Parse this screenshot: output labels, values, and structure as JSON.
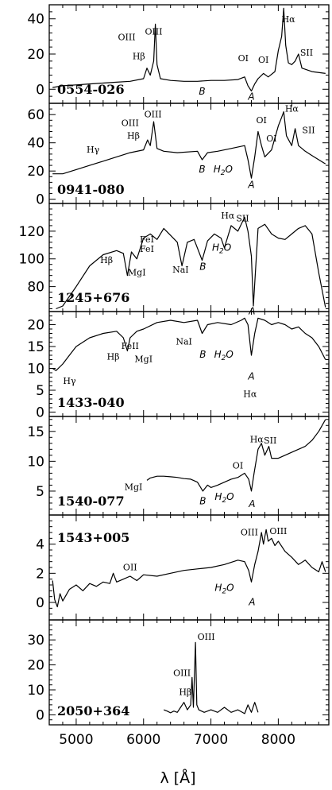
{
  "chart_data": {
    "type": "line",
    "xlabel": "λ [Å]",
    "xlim": [
      4600,
      8750
    ],
    "x_ticks": [
      5000,
      6000,
      7000,
      8000
    ],
    "x_tick_labels": [
      "5000",
      "6000",
      "7000",
      "8000"
    ],
    "panels": [
      {
        "name": "0554-026",
        "ylim": [
          -8,
          48
        ],
        "y_ticks": [
          0,
          20,
          40
        ],
        "y_tick_labels": [
          "0",
          "20",
          "40"
        ],
        "series": [
          {
            "x": [
              4650,
              4800,
              5000,
              5200,
              5400,
              5600,
              5800,
              6000,
              6050,
              6100,
              6150,
              6175,
              6200,
              6250,
              6400,
              6600,
              6800,
              7000,
              7200,
              7400,
              7500,
              7550,
              7600,
              7650,
              7700,
              7780,
              7850,
              7950,
              8000,
              8050,
              8080,
              8110,
              8150,
              8200,
              8250,
              8300,
              8350,
              8500,
              8700
            ],
            "y": [
              1,
              2,
              2.5,
              3,
              3.5,
              4,
              4.5,
              6,
              12,
              8,
              16,
              37,
              14,
              6,
              5,
              4.5,
              4.5,
              5,
              5,
              5.5,
              7,
              2,
              -1,
              3,
              6,
              9,
              7,
              10,
              22,
              30,
              46,
              25,
              15,
              14,
              16,
              20,
              12,
              10,
              9
            ]
          }
        ],
        "line_labels": [
          {
            "text": "OIII",
            "x": 5750,
            "y": 28
          },
          {
            "text": "Hβ",
            "x": 5930,
            "y": 17
          },
          {
            "text": "OIII",
            "x": 6150,
            "y": 31
          },
          {
            "text": "OI",
            "x": 7480,
            "y": 16
          },
          {
            "text": "OI",
            "x": 7780,
            "y": 15
          },
          {
            "text": "Hα",
            "x": 8150,
            "y": 38
          },
          {
            "text": "SII",
            "x": 8420,
            "y": 19
          }
        ],
        "band_labels": [
          {
            "text": "B",
            "x": 6870,
            "y": -3
          },
          {
            "text": "A",
            "x": 7600,
            "y": -6
          }
        ]
      },
      {
        "name": "0941-080",
        "ylim": [
          -3,
          68
        ],
        "y_ticks": [
          0,
          20,
          40,
          60
        ],
        "y_tick_labels": [
          "0",
          "20",
          "40",
          "60"
        ],
        "series": [
          {
            "x": [
              4650,
              4800,
              5000,
              5200,
              5400,
              5600,
              5800,
              6000,
              6060,
              6100,
              6150,
              6200,
              6300,
              6500,
              6800,
              6870,
              6950,
              7100,
              7300,
              7500,
              7550,
              7600,
              7650,
              7700,
              7750,
              7800,
              7900,
              8000,
              8050,
              8080,
              8120,
              8200,
              8250,
              8300,
              8400,
              8500,
              8600,
              8700
            ],
            "y": [
              18,
              18,
              21,
              24,
              27,
              30,
              33,
              35,
              42,
              38,
              55,
              36,
              34,
              33,
              34,
              28,
              33,
              34,
              36,
              38,
              28,
              15,
              30,
              48,
              38,
              30,
              35,
              52,
              58,
              62,
              45,
              38,
              50,
              38,
              34,
              31,
              28,
              25
            ]
          }
        ],
        "line_labels": [
          {
            "text": "Hγ",
            "x": 5250,
            "y": 33
          },
          {
            "text": "OIII",
            "x": 5800,
            "y": 52
          },
          {
            "text": "Hβ",
            "x": 5850,
            "y": 43
          },
          {
            "text": "OIII",
            "x": 6140,
            "y": 58
          },
          {
            "text": "OI",
            "x": 7750,
            "y": 54
          },
          {
            "text": "OI",
            "x": 7900,
            "y": 41
          },
          {
            "text": "Hα",
            "x": 8200,
            "y": 62
          },
          {
            "text": "SII",
            "x": 8450,
            "y": 47
          }
        ],
        "band_labels": [
          {
            "text": "B",
            "x": 6870,
            "y": 19
          },
          {
            "text": "H2O",
            "x": 7180,
            "y": 19
          },
          {
            "text": "A",
            "x": 7600,
            "y": 8
          }
        ]
      },
      {
        "name": "1245+676",
        "ylim": [
          62,
          140
        ],
        "y_ticks": [
          80,
          100,
          120
        ],
        "y_tick_labels": [
          "80",
          "100",
          "120"
        ],
        "series": [
          {
            "x": [
              4700,
              4800,
              5000,
              5200,
              5400,
              5600,
              5700,
              5760,
              5820,
              5900,
              6000,
              6100,
              6200,
              6300,
              6400,
              6500,
              6570,
              6650,
              6750,
              6870,
              6950,
              7050,
              7150,
              7200,
              7300,
              7400,
              7500,
              7550,
              7600,
              7630,
              7700,
              7800,
              7900,
              8000,
              8100,
              8200,
              8300,
              8400,
              8500,
              8600,
              8700
            ],
            "y": [
              64,
              66,
              80,
              95,
              103,
              106,
              104,
              88,
              105,
              100,
              115,
              118,
              114,
              122,
              117,
              112,
              95,
              112,
              114,
              99,
              113,
              118,
              115,
              108,
              124,
              120,
              130,
              120,
              102,
              66,
              122,
              125,
              118,
              115,
              114,
              118,
              122,
              124,
              118,
              90,
              65
            ]
          }
        ],
        "line_labels": [
          {
            "text": "Hβ",
            "x": 5450,
            "y": 97
          },
          {
            "text": "FeI",
            "x": 6050,
            "y": 112
          },
          {
            "text": "FeI",
            "x": 6050,
            "y": 105
          },
          {
            "text": "MgI",
            "x": 5900,
            "y": 88
          },
          {
            "text": "NaI",
            "x": 6550,
            "y": 90
          },
          {
            "text": "Hα",
            "x": 7250,
            "y": 129
          },
          {
            "text": "SII",
            "x": 7470,
            "y": 127
          }
        ],
        "band_labels": [
          {
            "text": "B",
            "x": 6880,
            "y": 92
          },
          {
            "text": "H2O",
            "x": 7160,
            "y": 106
          },
          {
            "text": "A",
            "x": 7610,
            "y": 60
          }
        ]
      },
      {
        "name": "1433-040",
        "ylim": [
          -1,
          23
        ],
        "y_ticks": [
          0,
          5,
          10,
          15,
          20
        ],
        "y_tick_labels": [
          "0",
          "5",
          "10",
          "15",
          "20"
        ],
        "series": [
          {
            "x": [
              4650,
              4700,
              4800,
              4900,
              5000,
              5200,
              5400,
              5600,
              5700,
              5760,
              5800,
              5900,
              6000,
              6200,
              6400,
              6600,
              6800,
              6870,
              6950,
              7100,
              7300,
              7450,
              7500,
              7550,
              7600,
              7650,
              7700,
              7800,
              7900,
              8000,
              8100,
              8200,
              8300,
              8400,
              8500,
              8600,
              8700
            ],
            "y": [
              10,
              9.5,
              11,
              13,
              15,
              17,
              18,
              18.5,
              17,
              14,
              17,
              18.5,
              19,
              20.5,
              21,
              20.5,
              21,
              18,
              20,
              20.5,
              20,
              21,
              21.5,
              20,
              13,
              18,
              21.5,
              21,
              20,
              20.5,
              20,
              19,
              19.5,
              18,
              17,
              15,
              12
            ]
          }
        ],
        "line_labels": [
          {
            "text": "Hγ",
            "x": 4900,
            "y": 6.5
          },
          {
            "text": "Hβ",
            "x": 5550,
            "y": 12
          },
          {
            "text": "FeII",
            "x": 5800,
            "y": 14.5
          },
          {
            "text": "MgI",
            "x": 6000,
            "y": 11.5
          },
          {
            "text": "NaI",
            "x": 6600,
            "y": 15.5
          },
          {
            "text": "Hα",
            "x": 7580,
            "y": 3.5
          }
        ],
        "band_labels": [
          {
            "text": "B",
            "x": 6880,
            "y": 12.5
          },
          {
            "text": "H2O",
            "x": 7190,
            "y": 12.5
          },
          {
            "text": "A",
            "x": 7600,
            "y": 7.5
          }
        ]
      },
      {
        "name": "1540-077",
        "ylim": [
          1,
          17.5
        ],
        "y_ticks": [
          5,
          10,
          15
        ],
        "y_tick_labels": [
          "5",
          "10",
          "15"
        ],
        "series": [
          {
            "x": [
              6050,
              6100,
              6200,
              6300,
              6400,
              6500,
              6600,
              6700,
              6800,
              6880,
              6950,
              7000,
              7100,
              7200,
              7300,
              7400,
              7500,
              7560,
              7600,
              7640,
              7700,
              7750,
              7800,
              7860,
              7900,
              8000,
              8100,
              8200,
              8300,
              8400,
              8500,
              8600,
              8700
            ],
            "y": [
              6.8,
              7.2,
              7.5,
              7.5,
              7.4,
              7.3,
              7.1,
              7,
              6.5,
              5,
              6,
              5.6,
              6,
              6.5,
              7,
              7.3,
              8,
              7,
              5,
              8,
              12,
              13,
              11,
              12.5,
              10.5,
              10.5,
              11,
              11.5,
              12,
              12.5,
              13.5,
              15,
              17
            ]
          }
        ],
        "line_labels": [
          {
            "text": "MgI",
            "x": 5850,
            "y": 5.2
          },
          {
            "text": "OI",
            "x": 7400,
            "y": 8.8
          },
          {
            "text": "Hα",
            "x": 7680,
            "y": 13.2
          },
          {
            "text": "SII",
            "x": 7880,
            "y": 13
          }
        ],
        "band_labels": [
          {
            "text": "B",
            "x": 6880,
            "y": 2.8
          },
          {
            "text": "H2O",
            "x": 7200,
            "y": 3.5
          },
          {
            "text": "A",
            "x": 7610,
            "y": 2.3
          }
        ]
      },
      {
        "name": "1543+005",
        "ylim": [
          -1.2,
          6
        ],
        "y_ticks": [
          0,
          2,
          4
        ],
        "y_tick_labels": [
          "0",
          "2",
          "4"
        ],
        "series": [
          {
            "x": [
              4650,
              4680,
              4720,
              4760,
              4800,
              4850,
              4900,
              5000,
              5100,
              5200,
              5300,
              5400,
              5500,
              5550,
              5600,
              5700,
              5800,
              5900,
              6000,
              6200,
              6400,
              6600,
              6800,
              7000,
              7200,
              7400,
              7500,
              7560,
              7600,
              7650,
              7700,
              7750,
              7780,
              7820,
              7850,
              7900,
              7950,
              8000,
              8100,
              8200,
              8300,
              8400,
              8500,
              8600,
              8650,
              8700
            ],
            "y": [
              1.5,
              0.2,
              -0.3,
              0.6,
              0.1,
              0.5,
              0.9,
              1.2,
              0.8,
              1.3,
              1.1,
              1.4,
              1.3,
              2.0,
              1.4,
              1.6,
              1.8,
              1.5,
              1.9,
              1.8,
              2.0,
              2.2,
              2.3,
              2.4,
              2.6,
              2.9,
              2.8,
              2.2,
              1.4,
              2.6,
              3.5,
              4.8,
              4.0,
              5.0,
              4.2,
              4.4,
              3.9,
              4.2,
              3.5,
              3.1,
              2.6,
              2.9,
              2.4,
              2.1,
              2.8,
              2.1
            ]
          }
        ],
        "line_labels": [
          {
            "text": "OII",
            "x": 5800,
            "y": 2.2
          },
          {
            "text": "OIII",
            "x": 7570,
            "y": 4.6
          },
          {
            "text": "OIII",
            "x": 8000,
            "y": 4.7
          }
        ],
        "band_labels": [
          {
            "text": "H2O",
            "x": 7200,
            "y": 0.8
          },
          {
            "text": "A",
            "x": 7610,
            "y": -0.2
          }
        ]
      },
      {
        "name": "2050+364",
        "ylim": [
          -4,
          38
        ],
        "y_ticks": [
          0,
          10,
          20,
          30
        ],
        "y_tick_labels": [
          "0",
          "10",
          "20",
          "30"
        ],
        "series": [
          {
            "x": [
              6300,
              6350,
              6400,
              6450,
              6500,
              6550,
              6600,
              6650,
              6700,
              6720,
              6740,
              6770,
              6790,
              6820,
              6900,
              7000,
              7100,
              7200,
              7300,
              7400,
              7500,
              7550,
              7600,
              7650,
              7700
            ],
            "y": [
              2,
              1.5,
              0.8,
              1.5,
              1,
              3,
              5,
              2,
              4,
              15,
              3,
              29,
              4,
              2,
              1,
              2,
              1,
              3,
              1,
              2,
              0.5,
              4,
              1,
              5,
              1
            ]
          }
        ],
        "line_labels": [
          {
            "text": "OIII",
            "x": 6570,
            "y": 15.5
          },
          {
            "text": "Hβ",
            "x": 6620,
            "y": 8
          },
          {
            "text": "OIII",
            "x": 6930,
            "y": 30
          }
        ],
        "band_labels": []
      }
    ]
  }
}
